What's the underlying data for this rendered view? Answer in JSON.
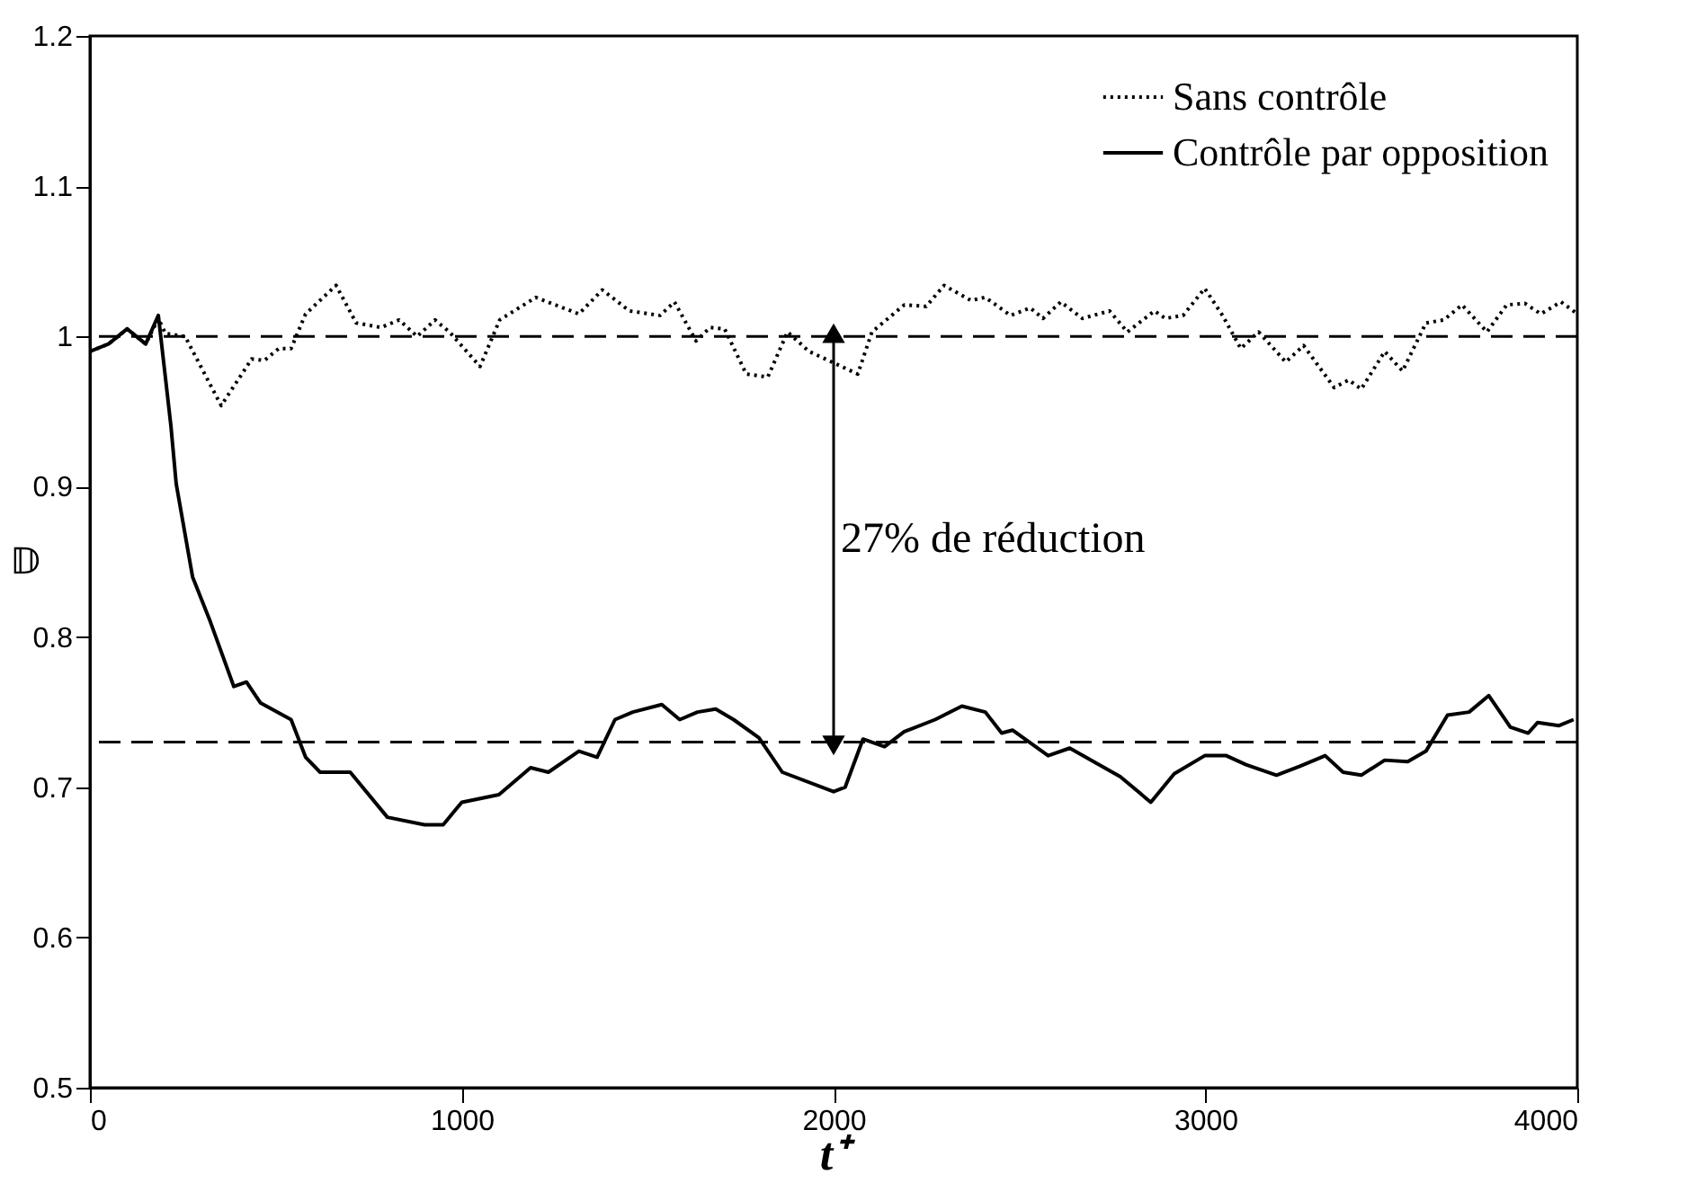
{
  "chart_data": {
    "type": "line",
    "xlabel": "t⁺",
    "ylabel": "𝔻",
    "xlim": [
      0,
      4000
    ],
    "xticks": [
      0,
      1000,
      2000,
      3000,
      4000
    ],
    "ylim": [
      0.5,
      1.2
    ],
    "yticks": [
      0.5,
      0.6,
      0.7,
      0.8,
      0.9,
      1,
      1.1,
      1.2
    ],
    "grid": false,
    "legend": "top right",
    "marker": "none",
    "series": [
      {
        "name": "Sans contrôle",
        "color": "#000000",
        "line_style": "dotted",
        "x": [
          0,
          50,
          100,
          150,
          184,
          203,
          256,
          353,
          435,
          469,
          508,
          541,
          580,
          662,
          716,
          783,
          832,
          880,
          928,
          967,
          1049,
          1102,
          1199,
          1315,
          1378,
          1451,
          1533,
          1572,
          1630,
          1668,
          1707,
          1765,
          1823,
          1876,
          1934,
          2065,
          2103,
          2190,
          2249,
          2297,
          2369,
          2408,
          2476,
          2529,
          2563,
          2611,
          2669,
          2742,
          2790,
          2863,
          2892,
          2940,
          2998,
          3046,
          3095,
          3143,
          3216,
          3264,
          3346,
          3385,
          3419,
          3482,
          3530,
          3593,
          3641,
          3690,
          3757,
          3810,
          3859,
          3902,
          3956,
          4000
        ],
        "values": [
          0.99,
          0.995,
          1.005,
          0.995,
          1.012,
          1.002,
          1.0,
          0.954,
          0.985,
          0.984,
          0.992,
          0.992,
          1.015,
          1.034,
          1.009,
          1.006,
          1.011,
          1.0,
          1.011,
          1.003,
          0.98,
          1.011,
          1.026,
          1.015,
          1.031,
          1.017,
          1.014,
          1.023,
          0.997,
          1.006,
          1.005,
          0.975,
          0.973,
          1.003,
          0.99,
          0.975,
          1.003,
          1.021,
          1.02,
          1.034,
          1.024,
          1.026,
          1.014,
          1.019,
          1.012,
          1.023,
          1.012,
          1.017,
          1.003,
          1.017,
          1.012,
          1.014,
          1.032,
          1.014,
          0.992,
          1.003,
          0.983,
          0.994,
          0.966,
          0.971,
          0.965,
          0.99,
          0.977,
          1.009,
          1.011,
          1.021,
          1.003,
          1.021,
          1.022,
          1.015,
          1.023,
          1.015
        ]
      },
      {
        "name": "Contrôle par opposition",
        "color": "#000000",
        "line_style": "solid",
        "x": [
          0,
          50,
          100,
          150,
          184,
          218,
          232,
          276,
          324,
          387,
          421,
          459,
          541,
          580,
          619,
          700,
          800,
          900,
          950,
          1000,
          1100,
          1185,
          1233,
          1315,
          1364,
          1412,
          1460,
          1538,
          1586,
          1634,
          1683,
          1731,
          1799,
          1862,
          2000,
          2031,
          2079,
          2137,
          2190,
          2273,
          2345,
          2408,
          2452,
          2481,
          2577,
          2635,
          2771,
          2853,
          2916,
          2998,
          3056,
          3109,
          3191,
          3254,
          3322,
          3370,
          3419,
          3482,
          3544,
          3593,
          3651,
          3709,
          3762,
          3820,
          3868,
          3893,
          3951,
          3990
        ],
        "values": [
          0.99,
          0.995,
          1.005,
          0.995,
          1.014,
          0.94,
          0.902,
          0.84,
          0.81,
          0.767,
          0.77,
          0.756,
          0.745,
          0.72,
          0.71,
          0.71,
          0.68,
          0.675,
          0.675,
          0.69,
          0.695,
          0.713,
          0.71,
          0.724,
          0.72,
          0.745,
          0.75,
          0.755,
          0.745,
          0.75,
          0.752,
          0.745,
          0.733,
          0.71,
          0.697,
          0.7,
          0.732,
          0.727,
          0.737,
          0.745,
          0.754,
          0.75,
          0.736,
          0.738,
          0.721,
          0.726,
          0.707,
          0.69,
          0.709,
          0.721,
          0.721,
          0.715,
          0.708,
          0.714,
          0.721,
          0.71,
          0.708,
          0.718,
          0.717,
          0.724,
          0.748,
          0.75,
          0.761,
          0.74,
          0.736,
          0.743,
          0.741,
          0.745
        ]
      }
    ],
    "ref_lines": [
      {
        "axis": "y",
        "value": 1,
        "line_style": "dashed",
        "color": "#000000"
      },
      {
        "axis": "y",
        "value": 0.73,
        "line_style": "dashed",
        "color": "#000000"
      }
    ],
    "annotations": [
      "27% de réduction"
    ]
  }
}
